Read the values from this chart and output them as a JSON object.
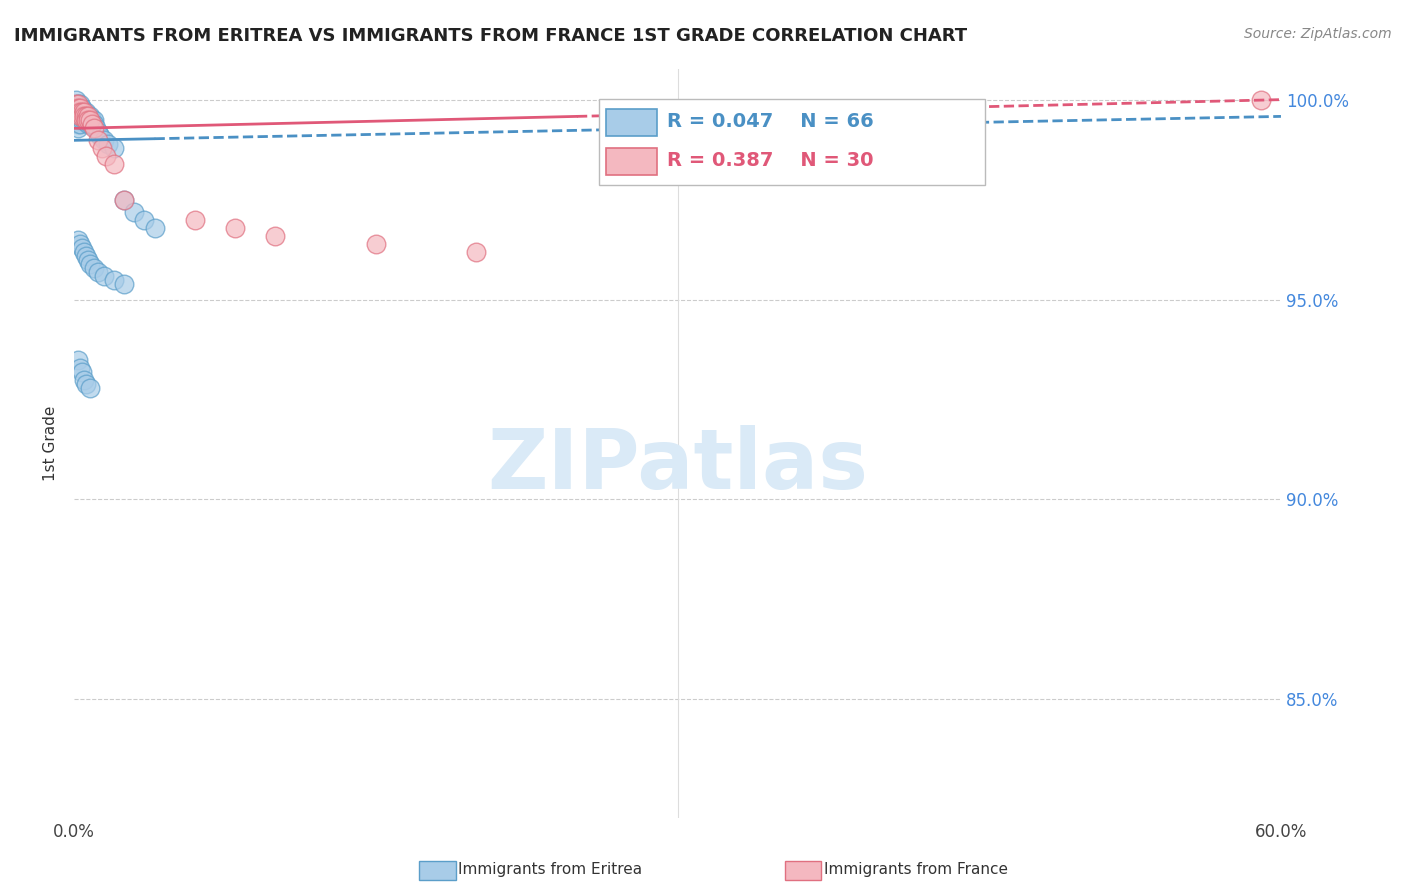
{
  "title": "IMMIGRANTS FROM ERITREA VS IMMIGRANTS FROM FRANCE 1ST GRADE CORRELATION CHART",
  "source": "Source: ZipAtlas.com",
  "legend_eritrea": "Immigrants from Eritrea",
  "legend_france": "Immigrants from France",
  "R_eritrea": 0.047,
  "N_eritrea": 66,
  "R_france": 0.387,
  "N_france": 30,
  "color_eritrea_fill": "#a8cce8",
  "color_eritrea_edge": "#5b9ec9",
  "color_france_fill": "#f4b8c0",
  "color_france_edge": "#e07080",
  "color_eritrea_line": "#4a90c4",
  "color_france_line": "#e05878",
  "xlim": [
    0.0,
    0.6
  ],
  "ylim": [
    0.82,
    1.008
  ],
  "yticks": [
    0.85,
    0.9,
    0.95,
    1.0
  ],
  "xticks": [
    0.0,
    0.1,
    0.2,
    0.3,
    0.4,
    0.5,
    0.6
  ],
  "eritrea_x": [
    0.001,
    0.001,
    0.001,
    0.001,
    0.001,
    0.002,
    0.002,
    0.002,
    0.002,
    0.002,
    0.002,
    0.002,
    0.003,
    0.003,
    0.003,
    0.003,
    0.003,
    0.003,
    0.004,
    0.004,
    0.004,
    0.004,
    0.005,
    0.005,
    0.005,
    0.006,
    0.006,
    0.006,
    0.007,
    0.007,
    0.007,
    0.008,
    0.008,
    0.008,
    0.009,
    0.009,
    0.01,
    0.01,
    0.011,
    0.012,
    0.013,
    0.015,
    0.017,
    0.02,
    0.025,
    0.03,
    0.035,
    0.04,
    0.002,
    0.003,
    0.004,
    0.005,
    0.006,
    0.007,
    0.008,
    0.01,
    0.012,
    0.015,
    0.02,
    0.025,
    0.002,
    0.003,
    0.004,
    0.005,
    0.006,
    0.008
  ],
  "eritrea_y": [
    0.999,
    0.998,
    0.997,
    0.996,
    1.0,
    0.999,
    0.998,
    0.997,
    0.996,
    0.995,
    0.994,
    0.993,
    0.999,
    0.998,
    0.997,
    0.996,
    0.995,
    0.994,
    0.998,
    0.997,
    0.996,
    0.995,
    0.997,
    0.996,
    0.995,
    0.997,
    0.996,
    0.995,
    0.996,
    0.995,
    0.994,
    0.996,
    0.995,
    0.994,
    0.995,
    0.994,
    0.995,
    0.994,
    0.993,
    0.992,
    0.991,
    0.99,
    0.989,
    0.988,
    0.975,
    0.972,
    0.97,
    0.968,
    0.965,
    0.964,
    0.963,
    0.962,
    0.961,
    0.96,
    0.959,
    0.958,
    0.957,
    0.956,
    0.955,
    0.954,
    0.935,
    0.933,
    0.932,
    0.93,
    0.929,
    0.928
  ],
  "france_x": [
    0.001,
    0.001,
    0.002,
    0.002,
    0.002,
    0.003,
    0.003,
    0.003,
    0.004,
    0.004,
    0.005,
    0.005,
    0.006,
    0.006,
    0.007,
    0.007,
    0.008,
    0.009,
    0.01,
    0.012,
    0.014,
    0.016,
    0.02,
    0.025,
    0.06,
    0.08,
    0.1,
    0.15,
    0.2,
    0.59
  ],
  "france_y": [
    0.999,
    0.998,
    0.999,
    0.998,
    0.997,
    0.998,
    0.997,
    0.996,
    0.997,
    0.996,
    0.997,
    0.996,
    0.996,
    0.995,
    0.996,
    0.995,
    0.995,
    0.994,
    0.993,
    0.99,
    0.988,
    0.986,
    0.984,
    0.975,
    0.97,
    0.968,
    0.966,
    0.964,
    0.962,
    1.0
  ],
  "watermark_text": "ZIPatlas",
  "watermark_color": "#daeaf7"
}
